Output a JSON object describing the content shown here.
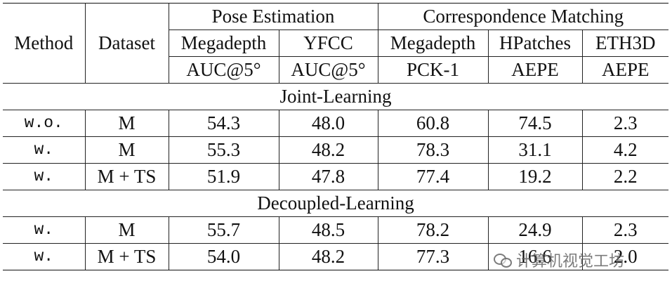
{
  "table": {
    "header": {
      "method": "Method",
      "dataset": "Dataset",
      "group_pose": "Pose Estimation",
      "group_corr": "Correspondence Matching",
      "datasets": [
        "Megadepth",
        "YFCC",
        "Megadepth",
        "HPatches",
        "ETH3D"
      ],
      "metrics": [
        "AUC@5°",
        "AUC@5°",
        "PCK-1",
        "AEPE",
        "AEPE"
      ]
    },
    "sections": [
      {
        "title": "Joint-Learning",
        "rows": [
          {
            "method": "w.o.",
            "dataset": "M",
            "cells": [
              "54.3",
              "48.0",
              "60.8",
              "74.5",
              "2.3"
            ],
            "bold": [
              false,
              false,
              false,
              false,
              false
            ]
          },
          {
            "method": "w.",
            "dataset": "M",
            "cells": [
              "55.3",
              "48.2",
              "78.3",
              "31.1",
              "4.2"
            ],
            "bold": [
              false,
              false,
              true,
              false,
              false
            ]
          },
          {
            "method": "w.",
            "dataset": "M + TS",
            "cells": [
              "51.9",
              "47.8",
              "77.4",
              "19.2",
              "2.2"
            ],
            "bold": [
              false,
              false,
              false,
              false,
              false
            ]
          }
        ]
      },
      {
        "title": "Decoupled-Learning",
        "rows": [
          {
            "method": "w.",
            "dataset": "M",
            "cells": [
              "55.7",
              "48.5",
              "78.2",
              "24.9",
              "2.3"
            ],
            "bold": [
              true,
              true,
              false,
              false,
              false
            ]
          },
          {
            "method": "w.",
            "dataset": "M + TS",
            "cells": [
              "54.0",
              "48.2",
              "77.3",
              "16.6",
              "2.0"
            ],
            "bold": [
              false,
              false,
              false,
              true,
              true
            ]
          }
        ]
      }
    ]
  },
  "watermark": {
    "icon": "wechat-icon",
    "text": "计算机视觉工坊"
  }
}
